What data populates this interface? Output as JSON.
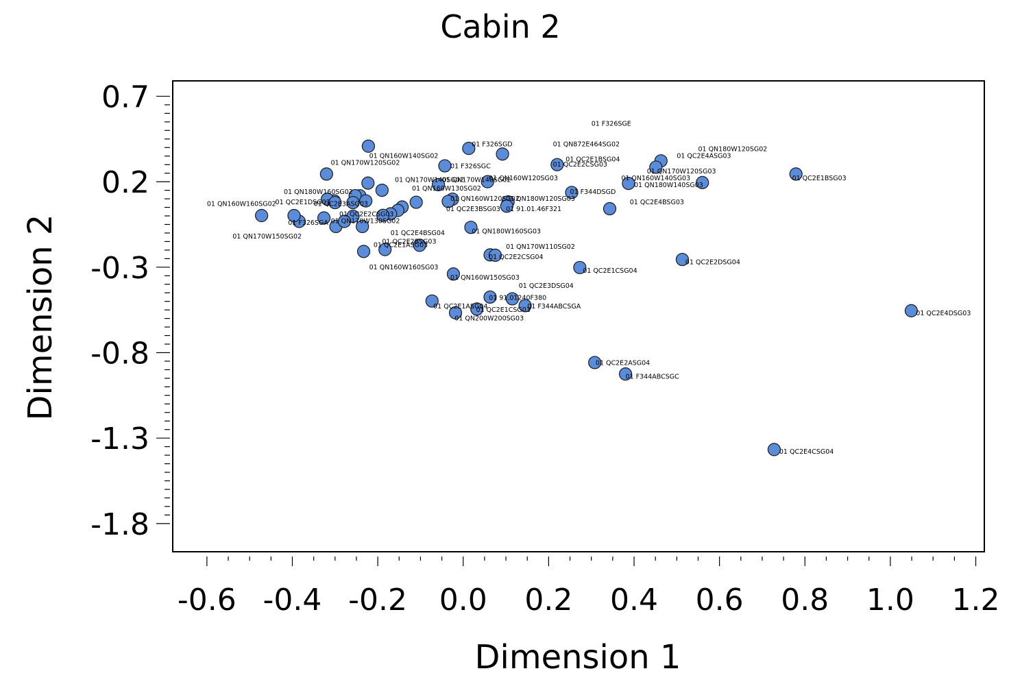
{
  "chart_data": {
    "type": "scatter",
    "title": "Cabin 2",
    "xlabel": "Dimension 1",
    "ylabel": "Dimension 2",
    "xlim": [
      -0.68,
      1.22
    ],
    "ylim": [
      -1.965,
      0.79
    ],
    "x_ticks": [
      "-0.6",
      "-0.4",
      "-0.2",
      "0.0",
      "0.2",
      "0.4",
      "0.6",
      "0.8",
      "1.0",
      "1.2"
    ],
    "y_ticks": [
      "0.7",
      "0.2",
      "-0.3",
      "-0.8",
      "-1.3",
      "-1.8"
    ],
    "grid": false,
    "legend": "none",
    "marker_color": "#5b8cd9",
    "points": [
      {
        "x": 1.049,
        "y": -0.555,
        "label": "01  QC2E4DSG03"
      },
      {
        "x": 0.728,
        "y": -1.367,
        "label": "01  QC2E4CSG04"
      },
      {
        "x": 0.779,
        "y": 0.245,
        "label": "01  QC2E1BSG03"
      },
      {
        "x": 0.308,
        "y": -0.858,
        "label": "01  QC2E2ASG04"
      },
      {
        "x": 0.38,
        "y": -0.925,
        "label": "01  F344ABCSGC"
      },
      {
        "x": 0.513,
        "y": -0.255,
        "label": "01  QC2E2DSG04"
      },
      {
        "x": 0.273,
        "y": -0.302,
        "label": "01  QC2E1CSG04"
      },
      {
        "x": 0.56,
        "y": 0.195,
        "label": "01  QN180W140SG03"
      },
      {
        "x": 0.463,
        "y": 0.322,
        "label": "01  QC2E4ASG03"
      },
      {
        "x": 0.451,
        "y": 0.285,
        "label": "01  QN170W120SG03"
      },
      {
        "x": 0.387,
        "y": 0.19,
        "label": "01  QN160W140SG03"
      },
      {
        "x": 0.343,
        "y": 0.042,
        "label": "01  QC2E4BSG03"
      },
      {
        "x": 0.254,
        "y": 0.137,
        "label": "01  F344DSGD"
      },
      {
        "x": 0.22,
        "y": 0.3,
        "label": "01  QC2E2CSG03"
      },
      {
        "x": 0.145,
        "y": -0.525,
        "label": "01  F344ABCSGA"
      },
      {
        "x": 0.115,
        "y": -0.485,
        "label": "01  QC2E3DSG04"
      },
      {
        "x": 0.063,
        "y": -0.475,
        "label": "01  91.01240F380"
      },
      {
        "x": 0.032,
        "y": -0.545,
        "label": "01  QC2E1CSG03"
      },
      {
        "x": -0.018,
        "y": -0.567,
        "label": "01  QN200W200SG03"
      },
      {
        "x": -0.073,
        "y": -0.498,
        "label": "01  QC2E1ASG04"
      },
      {
        "x": -0.023,
        "y": -0.34,
        "label": "01  QN160W150SG03"
      },
      {
        "x": 0.063,
        "y": -0.228,
        "label": "01  QC2E2CSG04"
      },
      {
        "x": 0.075,
        "y": -0.23,
        "label": "01  QN170W110SG02"
      },
      {
        "x": 0.018,
        "y": -0.067,
        "label": "01  QN180W160SG03"
      },
      {
        "x": 0.105,
        "y": 0.082,
        "label": "01  QN180W120SG03"
      },
      {
        "x": 0.102,
        "y": 0.057,
        "label": "01  91.01.46F321"
      },
      {
        "x": 0.057,
        "y": 0.2,
        "label": "01  QN160W120SG03"
      },
      {
        "x": 0.092,
        "y": 0.362,
        "label": "01  QN872E464SG02"
      },
      {
        "x": 0.013,
        "y": 0.395,
        "label": "01  F326SGD"
      },
      {
        "x": -0.043,
        "y": 0.293,
        "label": "01  F326SGC"
      },
      {
        "x": -0.025,
        "y": 0.098,
        "label": "01  QN160W120SG02"
      },
      {
        "x": -0.035,
        "y": 0.085,
        "label": "01  QC2E3BSG03"
      },
      {
        "x": -0.058,
        "y": 0.183,
        "label": "01  QN170W140SG02"
      },
      {
        "x": -0.11,
        "y": 0.08,
        "label": "01  QN160W130SG02"
      },
      {
        "x": -0.19,
        "y": 0.15,
        "label": "01  QN160W130SG02"
      },
      {
        "x": -0.222,
        "y": 0.408,
        "label": "01  F326SGE"
      },
      {
        "x": -0.223,
        "y": 0.192,
        "label": "01  QN160W140SG02"
      },
      {
        "x": -0.32,
        "y": 0.245,
        "label": "01  QN170W120SG02"
      },
      {
        "x": -0.143,
        "y": 0.052,
        "label": "01  QC2E3ASG03"
      },
      {
        "x": -0.153,
        "y": 0.032,
        "label": "01  QC2E4BSG04"
      },
      {
        "x": -0.17,
        "y": 0.012,
        "label": "01  QN170W130SG02"
      },
      {
        "x": -0.188,
        "y": 0.003,
        "label": "01  QC2E2CSG03"
      },
      {
        "x": -0.102,
        "y": -0.172,
        "label": "01  QC2E2BSG03"
      },
      {
        "x": -0.183,
        "y": -0.197,
        "label": "01  QC2E1ASG03"
      },
      {
        "x": -0.233,
        "y": -0.208,
        "label": "01  QN160W160SG03"
      },
      {
        "x": -0.242,
        "y": 0.118,
        "label": "01  QN180W160SG02"
      },
      {
        "x": -0.253,
        "y": 0.118,
        "label": "01  QC2E3ASG03"
      },
      {
        "x": -0.258,
        "y": 0.078,
        "label": "01  QC2E2BSG03"
      },
      {
        "x": -0.228,
        "y": 0.088,
        "label": "01  QC2E1DSG03"
      },
      {
        "x": -0.302,
        "y": 0.088,
        "label": "01  QC2E1DSG03"
      },
      {
        "x": -0.318,
        "y": 0.098,
        "label": "01  QN180W160SG02"
      },
      {
        "x": -0.3,
        "y": 0.078,
        "label": "01  QN160W130SG02"
      },
      {
        "x": -0.258,
        "y": -0.002,
        "label": "01  QC2E2CSG03"
      },
      {
        "x": -0.298,
        "y": -0.062,
        "label": "01  QN170W130SG02"
      },
      {
        "x": -0.278,
        "y": -0.032,
        "label": "01  QN170W130SG02"
      },
      {
        "x": -0.236,
        "y": -0.062,
        "label": "01  QN170W130SG02"
      },
      {
        "x": -0.326,
        "y": -0.012,
        "label": "01  F326SGA"
      },
      {
        "x": -0.384,
        "y": -0.032,
        "label": "01  F326SGA"
      },
      {
        "x": -0.396,
        "y": 0.002,
        "label": "01  F326SGA"
      },
      {
        "x": -0.472,
        "y": 0.002,
        "label": "01  QN160W160SG02"
      }
    ],
    "labels": [
      {
        "x": 0.3,
        "y": 0.54,
        "text": "01  F326SGE"
      },
      {
        "x": 0.21,
        "y": 0.42,
        "text": "01  QN872E464SG02"
      },
      {
        "x": 0.24,
        "y": 0.33,
        "text": "01  QC2E1BSG04"
      },
      {
        "x": 0.55,
        "y": 0.39,
        "text": "01  QN180W120SG02"
      },
      {
        "x": 0.5,
        "y": 0.35,
        "text": "01  QC2E4ASG03"
      },
      {
        "x": 0.43,
        "y": 0.26,
        "text": "01  QN170W120SG03"
      },
      {
        "x": 0.37,
        "y": 0.22,
        "text": "01  QN160W140SG03"
      },
      {
        "x": 0.4,
        "y": 0.18,
        "text": "01  QN180W140SG03"
      },
      {
        "x": 0.39,
        "y": 0.08,
        "text": "01  QC2E4BSG03"
      },
      {
        "x": 0.77,
        "y": 0.22,
        "text": "01  QC2E1BSG03"
      },
      {
        "x": 1.06,
        "y": -0.57,
        "text": "01  QC2E4DSG03"
      },
      {
        "x": 0.74,
        "y": -1.38,
        "text": "01  QC2E4CSG04"
      },
      {
        "x": 0.52,
        "y": -0.27,
        "text": "01  QC2E2DSG04"
      },
      {
        "x": 0.28,
        "y": -0.32,
        "text": "01  QC2E1CSG04"
      },
      {
        "x": 0.31,
        "y": -0.86,
        "text": "01  QC2E2ASG04"
      },
      {
        "x": 0.38,
        "y": -0.94,
        "text": "01  F344ABCSGC"
      },
      {
        "x": 0.15,
        "y": -0.53,
        "text": "01  F344ABCSGA"
      },
      {
        "x": 0.13,
        "y": -0.41,
        "text": "01  QC2E3DSG04"
      },
      {
        "x": 0.06,
        "y": -0.48,
        "text": "01  91.01240F380"
      },
      {
        "x": 0.03,
        "y": -0.55,
        "text": "01  QC2E1CSG03"
      },
      {
        "x": -0.02,
        "y": -0.6,
        "text": "01  QN200W200SG03"
      },
      {
        "x": -0.07,
        "y": -0.53,
        "text": "01  QC2E1ASG04"
      },
      {
        "x": -0.03,
        "y": -0.36,
        "text": "01  QN160W150SG03"
      },
      {
        "x": 0.06,
        "y": -0.24,
        "text": "01  QC2E2CSG04"
      },
      {
        "x": 0.1,
        "y": -0.18,
        "text": "01  QN170W110SG02"
      },
      {
        "x": 0.02,
        "y": -0.09,
        "text": "01  QN180W160SG03"
      },
      {
        "x": 0.1,
        "y": 0.1,
        "text": "01  QN180W120SG03"
      },
      {
        "x": 0.1,
        "y": 0.04,
        "text": "01  91.01.46F321"
      },
      {
        "x": 0.06,
        "y": 0.22,
        "text": "01  QN160W120SG03"
      },
      {
        "x": 0.25,
        "y": 0.14,
        "text": "01  F344DSGD"
      },
      {
        "x": 0.21,
        "y": 0.3,
        "text": "01  QC2E2CSG03"
      },
      {
        "x": 0.02,
        "y": 0.42,
        "text": "01  F326SGD"
      },
      {
        "x": -0.03,
        "y": 0.29,
        "text": "01  F326SGC"
      },
      {
        "x": -0.03,
        "y": 0.1,
        "text": "01  QN160W120SG02"
      },
      {
        "x": -0.04,
        "y": 0.04,
        "text": "01  QC2E3BSG03"
      },
      {
        "x": -0.05,
        "y": 0.21,
        "text": "01  QN170W140SG02"
      },
      {
        "x": -0.12,
        "y": 0.16,
        "text": "01  QN160W130SG02"
      },
      {
        "x": -0.22,
        "y": 0.35,
        "text": "01  QN160W140SG02"
      },
      {
        "x": -0.31,
        "y": 0.31,
        "text": "01  QN170W120SG02"
      },
      {
        "x": -0.16,
        "y": 0.21,
        "text": "01  QN170W140SG02"
      },
      {
        "x": -0.17,
        "y": -0.1,
        "text": "01  QC2E4BSG04"
      },
      {
        "x": -0.19,
        "y": -0.15,
        "text": "01  QC2E2BSG03"
      },
      {
        "x": -0.21,
        "y": -0.17,
        "text": "01  QC2E1ASG03"
      },
      {
        "x": -0.22,
        "y": -0.3,
        "text": "01  QN160W160SG03"
      },
      {
        "x": -0.42,
        "y": 0.14,
        "text": "01  QN180W160SG02"
      },
      {
        "x": -0.44,
        "y": 0.08,
        "text": "01  QC2E1DSG03"
      },
      {
        "x": -0.35,
        "y": 0.07,
        "text": "01  QC2E3ASG03"
      },
      {
        "x": -0.29,
        "y": 0.01,
        "text": "01  QC2E2CSG03"
      },
      {
        "x": -0.31,
        "y": -0.03,
        "text": "01  QN170W130SG02"
      },
      {
        "x": -0.41,
        "y": -0.04,
        "text": "01  F326SGA"
      },
      {
        "x": -0.6,
        "y": 0.07,
        "text": "01  QN160W160SG02"
      },
      {
        "x": -0.54,
        "y": -0.12,
        "text": "01  QN170W150SG02"
      }
    ]
  }
}
